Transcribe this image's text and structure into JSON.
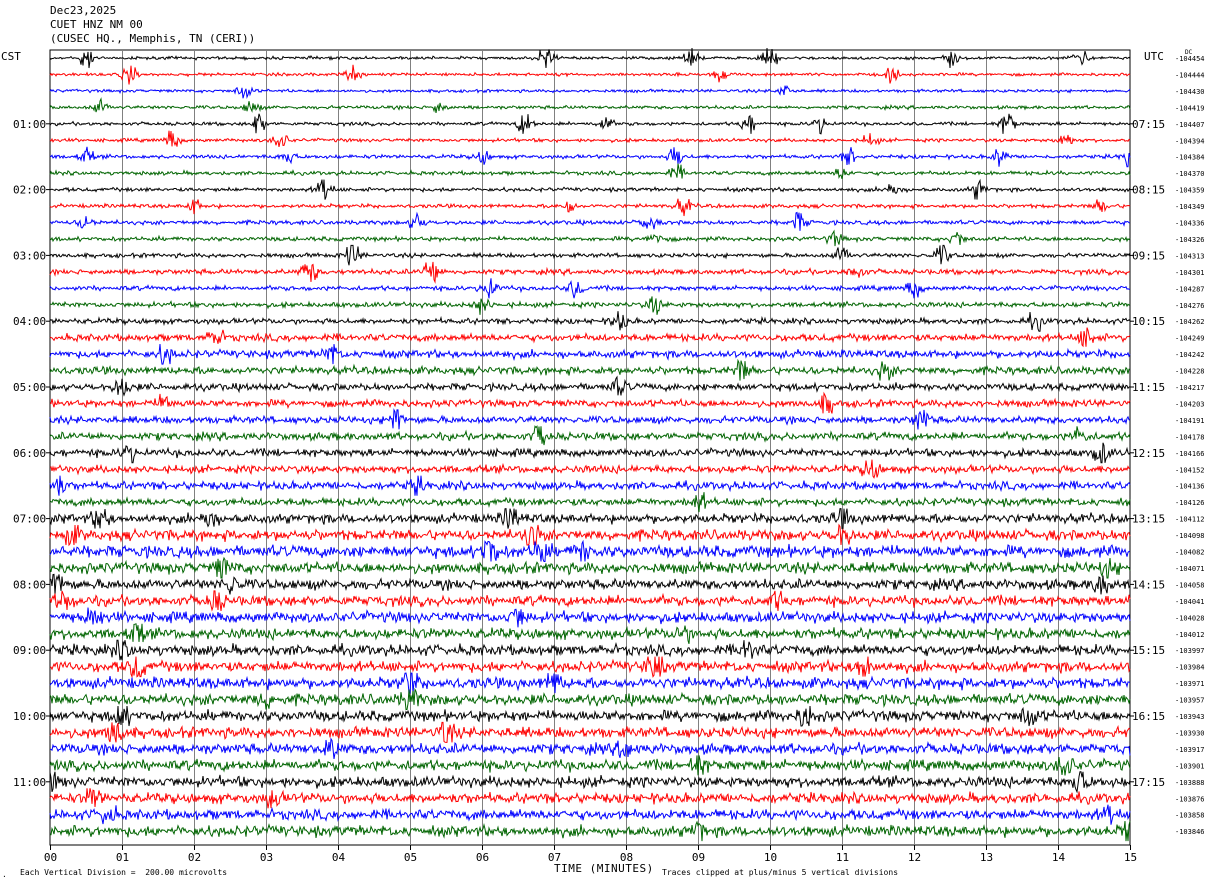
{
  "header": {
    "date": "Dec23,2025",
    "station": "CUET HNZ NM 00",
    "location": "(CUSEC HQ., Memphis, TN (CERI))"
  },
  "corners": {
    "left_tz": "CST",
    "right_tz": "UTC",
    "dc_label": "DC"
  },
  "footer": {
    "scale_note": "Each Vertical Division =  200.00 microvolts",
    "clip_note": "Traces clipped at plus/minus 5 vertical divisions"
  },
  "colors": {
    "trace_cycle": [
      "#000000",
      "#ff0000",
      "#0000ff",
      "#006400"
    ],
    "grid": "#808080"
  },
  "chart_data": {
    "type": "line",
    "title": "CUET HNZ NM 00",
    "xlabel": "TIME (MINUTES)",
    "ylabel": "",
    "x_ticks": [
      "00",
      "01",
      "02",
      "03",
      "04",
      "05",
      "06",
      "07",
      "08",
      "09",
      "10",
      "11",
      "12",
      "13",
      "14",
      "15"
    ],
    "xlim": [
      0,
      15
    ],
    "traces_per_hour": 4,
    "left_hour_labels": [
      "01:00",
      "02:00",
      "03:00",
      "04:00",
      "05:00",
      "06:00",
      "07:00",
      "08:00",
      "09:00",
      "10:00",
      "11:00"
    ],
    "right_hour_labels": [
      "07:15",
      "08:15",
      "09:15",
      "10:15",
      "11:15",
      "12:15",
      "13:15",
      "14:15",
      "15:15",
      "16:15",
      "17:15"
    ],
    "dc_offsets": [
      "-104454",
      "-104444",
      "-104430",
      "-104419",
      "-104407",
      "-104394",
      "-104384",
      "-104370",
      "-104359",
      "-104349",
      "-104336",
      "-104326",
      "-104313",
      "-104301",
      "-104287",
      "-104276",
      "-104262",
      "-104249",
      "-104242",
      "-104228",
      "-104217",
      "-104203",
      "-104191",
      "-104178",
      "-104166",
      "-104152",
      "-104136",
      "-104126",
      "-104112",
      "-104098",
      "-104082",
      "-104071",
      "-104058",
      "-104041",
      "-104028",
      "-104012",
      "-103997",
      "-103984",
      "-103971",
      "-103957",
      "-103943",
      "-103930",
      "-103917",
      "-103901",
      "-103888",
      "-103876",
      "-103858",
      "-103846"
    ],
    "noise_levels": [
      0.7,
      0.7,
      0.7,
      0.8,
      0.8,
      0.8,
      0.9,
      0.9,
      0.9,
      0.9,
      1,
      1,
      1,
      1.2,
      1.1,
      1.2,
      1.3,
      1.7,
      1.8,
      1.8,
      1.7,
      1.7,
      1.7,
      1.8,
      1.8,
      1.8,
      1.9,
      1.8,
      2.2,
      2.5,
      2.8,
      2.6,
      2.4,
      2.4,
      2.5,
      2.5,
      2.5,
      2.5,
      2.6,
      2.6,
      2.5,
      2.5,
      2.5,
      2.5,
      2.5,
      2.4,
      2.4,
      2.5
    ],
    "bursts": [
      [
        [
          0.5,
          1.3
        ],
        [
          6.9,
          1.4
        ],
        [
          8.9,
          1
        ],
        [
          10,
          1.1
        ],
        [
          12.5,
          0.9
        ],
        [
          14.3,
          1.2
        ]
      ],
      [
        [
          1.1,
          1
        ],
        [
          4.2,
          0.8
        ],
        [
          9.3,
          0.7
        ],
        [
          11.7,
          0.7
        ]
      ],
      [
        [
          2.7,
          1
        ],
        [
          10.2,
          0.7
        ]
      ],
      [
        [
          0.7,
          0.8
        ],
        [
          2.8,
          0.8
        ],
        [
          5.4,
          0.6
        ]
      ],
      [
        [
          2.9,
          1.2
        ],
        [
          6.6,
          1.3
        ],
        [
          7.7,
          1
        ],
        [
          9.7,
          1.2
        ],
        [
          10.7,
          1
        ],
        [
          13.3,
          1.5
        ]
      ],
      [
        [
          1.7,
          1
        ],
        [
          3.2,
          1
        ],
        [
          11.4,
          0.8
        ],
        [
          14.1,
          0.8
        ]
      ],
      [
        [
          0.5,
          0.8
        ],
        [
          3.3,
          0.8
        ],
        [
          6,
          0.8
        ],
        [
          8.7,
          1.2
        ],
        [
          11.1,
          0.8
        ],
        [
          13.2,
          1
        ],
        [
          15,
          1.5
        ]
      ],
      [
        [
          8.7,
          0.8
        ],
        [
          11,
          0.7
        ]
      ],
      [
        [
          3.8,
          2
        ],
        [
          11.7,
          1
        ],
        [
          12.9,
          1
        ]
      ],
      [
        [
          2,
          0.7
        ],
        [
          7.2,
          0.8
        ],
        [
          8.8,
          1
        ],
        [
          14.6,
          0.7
        ]
      ],
      [
        [
          0.5,
          0.8
        ],
        [
          5.1,
          1
        ],
        [
          8.3,
          1.1
        ],
        [
          10.4,
          1
        ]
      ],
      [
        [
          8.4,
          0.8
        ],
        [
          10.9,
          0.7
        ],
        [
          12.6,
          0.8
        ]
      ],
      [
        [
          4.2,
          1.5
        ],
        [
          11,
          1
        ],
        [
          12.4,
          1.2
        ]
      ],
      [
        [
          3.6,
          1.6
        ],
        [
          5.3,
          2
        ],
        [
          11.2,
          1
        ]
      ],
      [
        [
          6.1,
          1.6
        ],
        [
          7.3,
          1
        ],
        [
          12,
          1
        ]
      ],
      [
        [
          6,
          1
        ],
        [
          8.4,
          1
        ]
      ],
      [
        [
          7.9,
          1.2
        ],
        [
          13.7,
          1
        ]
      ],
      [
        [
          2.3,
          1
        ],
        [
          14.4,
          1.2
        ]
      ],
      [
        [
          1.6,
          1.2
        ],
        [
          3.9,
          1.2
        ]
      ],
      [
        [
          9.6,
          1.2
        ],
        [
          11.6,
          1
        ]
      ],
      [
        [
          1,
          1.2
        ],
        [
          7.9,
          1
        ]
      ],
      [
        [
          1.6,
          1
        ],
        [
          10.8,
          1.2
        ]
      ],
      [
        [
          4.8,
          1.5
        ],
        [
          12.1,
          1.3
        ]
      ],
      [
        [
          6.8,
          1.4
        ],
        [
          14.3,
          1
        ]
      ],
      [
        [
          1.1,
          1
        ],
        [
          14.6,
          1.3
        ]
      ],
      [
        [
          11.4,
          1.4
        ]
      ],
      [
        [
          0.1,
          1.2
        ],
        [
          5.1,
          1
        ]
      ],
      [
        [
          9,
          1.2
        ]
      ],
      [
        [
          0.7,
          1.3
        ],
        [
          2.2,
          1.4
        ],
        [
          6.4,
          1.5
        ],
        [
          11,
          1.2
        ]
      ],
      [
        [
          0.3,
          1
        ],
        [
          6.7,
          2.6
        ],
        [
          11,
          1.5
        ]
      ],
      [
        [
          6.1,
          2.2
        ],
        [
          6.8,
          2
        ],
        [
          7.4,
          1.3
        ]
      ],
      [
        [
          2.4,
          1.4
        ],
        [
          14.7,
          1.2
        ]
      ],
      [
        [
          0.1,
          1.5
        ],
        [
          2.5,
          1.2
        ],
        [
          14.6,
          1.3
        ]
      ],
      [
        [
          0.2,
          1.4
        ],
        [
          2.3,
          1.3
        ],
        [
          10.1,
          1.2
        ]
      ],
      [
        [
          0.6,
          1.2
        ],
        [
          6.5,
          1.1
        ]
      ],
      [
        [
          1.2,
          1.4
        ],
        [
          8.8,
          1
        ]
      ],
      [
        [
          1,
          1.3
        ],
        [
          9.7,
          1.4
        ]
      ],
      [
        [
          1.2,
          1.6
        ],
        [
          8.4,
          2.6
        ],
        [
          11.3,
          1.8
        ]
      ],
      [
        [
          5,
          2
        ],
        [
          7,
          1.3
        ]
      ],
      [
        [
          5,
          1.8
        ],
        [
          3,
          1.2
        ]
      ],
      [
        [
          1,
          1.4
        ],
        [
          10.5,
          1.5
        ],
        [
          13.6,
          1.3
        ]
      ],
      [
        [
          0.9,
          1.6
        ],
        [
          5.5,
          1.2
        ]
      ],
      [
        [
          3.9,
          1.4
        ],
        [
          8,
          1.2
        ]
      ],
      [
        [
          9,
          1.2
        ],
        [
          14.1,
          1.3
        ]
      ],
      [
        [
          0,
          1.2
        ],
        [
          14.3,
          1.8
        ]
      ],
      [
        [
          0.6,
          1.2
        ],
        [
          3.1,
          1
        ]
      ],
      [
        [
          0.8,
          1.2
        ],
        [
          14.7,
          1.3
        ]
      ],
      [
        [
          15,
          2
        ],
        [
          9,
          1
        ]
      ]
    ]
  }
}
